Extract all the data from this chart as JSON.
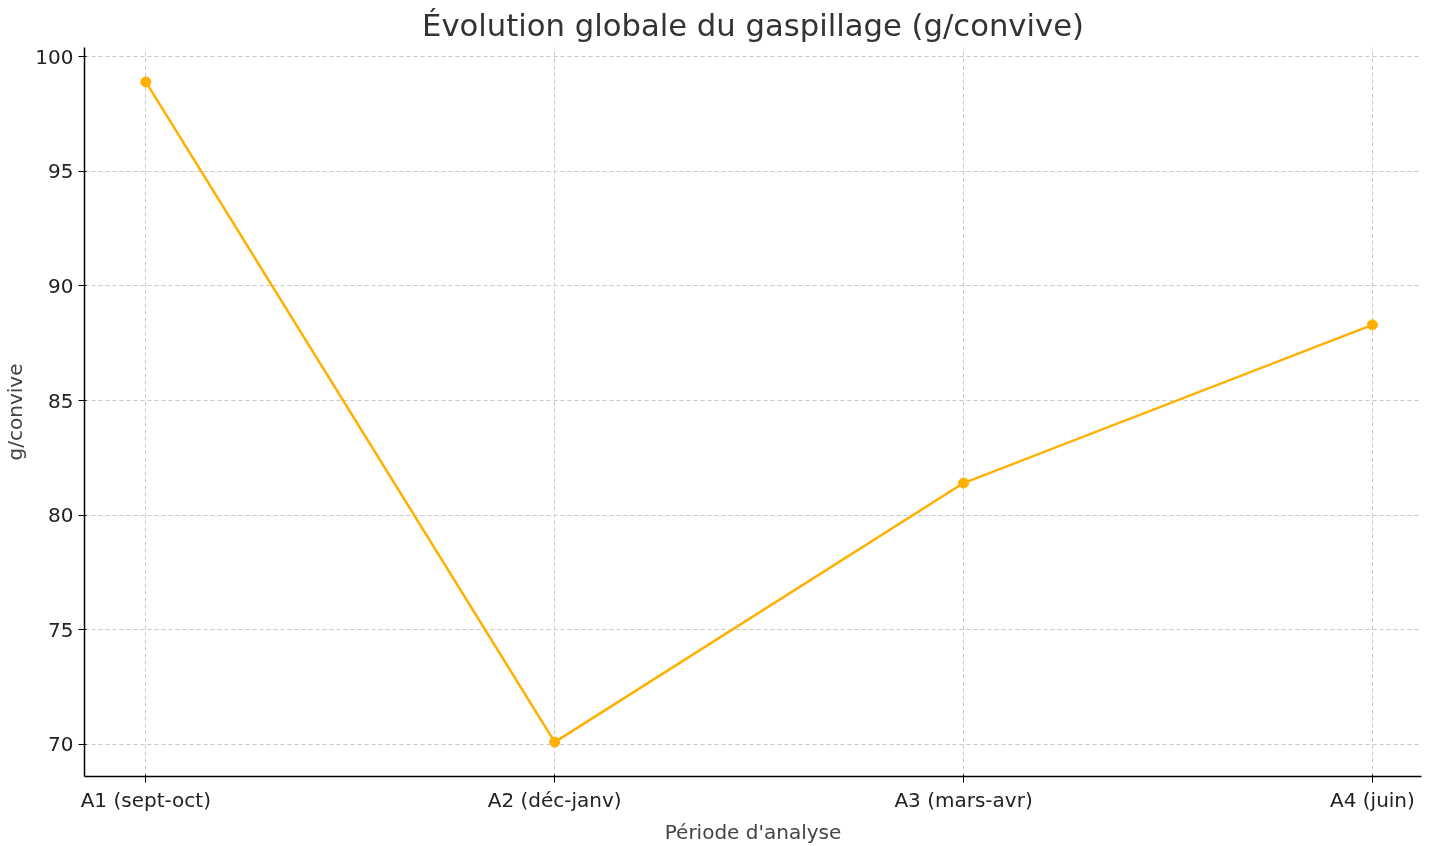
{
  "chart_data": {
    "type": "line",
    "title": "Évolution globale du gaspillage (g/convive)",
    "xlabel": "Période d'analyse",
    "ylabel": "g/convive",
    "categories": [
      "A1 (sept-oct)",
      "A2 (déc-janv)",
      "A3 (mars-avr)",
      "A4 (juin)"
    ],
    "series": [
      {
        "color": "#ffb000",
        "values": [
          98.9,
          70.1,
          81.4,
          88.3
        ]
      }
    ],
    "ylim": [
      68.6,
      100.4
    ],
    "yticks": [
      70,
      75,
      80,
      85,
      90,
      95,
      100
    ],
    "grid": true,
    "marker": "circle",
    "line_style": "solid"
  }
}
